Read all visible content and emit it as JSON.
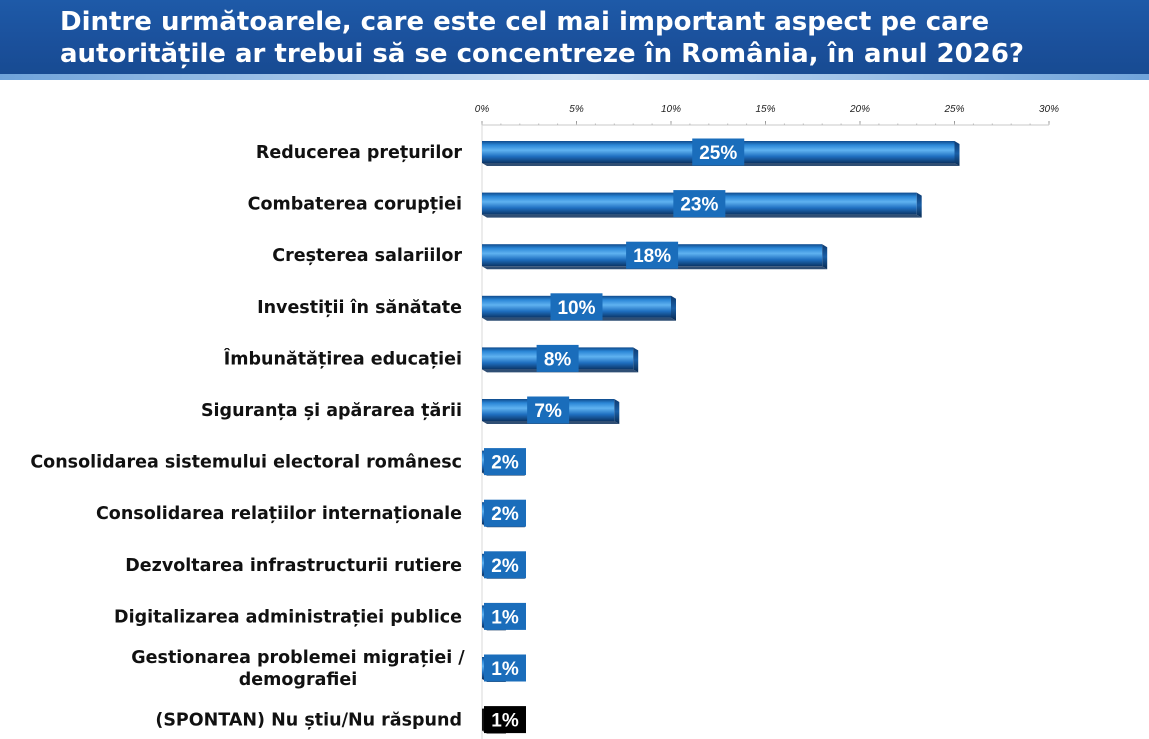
{
  "header": {
    "title": "Dintre următoarele, care este cel mai important aspect pe care autoritățile ar trebui să se concentreze în România, în anul 2026?"
  },
  "chart_data": {
    "type": "bar",
    "orientation": "horizontal",
    "title": "Dintre următoarele, care este cel mai important aspect pe care autoritățile ar trebui să se concentreze în România, în anul 2026?",
    "xlabel": "",
    "ylabel": "",
    "xlim": [
      0,
      30
    ],
    "ticks": [
      "0%",
      "5%",
      "10%",
      "15%",
      "20%",
      "25%",
      "30%"
    ],
    "categories": [
      "Reducerea prețurilor",
      "Combaterea corupției",
      "Creșterea salariilor",
      "Investiții în sănătate",
      "Îmbunătățirea educației",
      "Siguranța și apărarea țării",
      "Consolidarea sistemului electoral românesc",
      "Consolidarea relațiilor internaționale",
      "Dezvoltarea infrastructurii rutiere",
      "Digitalizarea administrației publice",
      "Gestionarea problemei migrației / demografiei",
      "(SPONTAN) Nu știu/Nu răspund"
    ],
    "category_lines": [
      [
        "Reducerea prețurilor"
      ],
      [
        "Combaterea corupției"
      ],
      [
        "Creșterea salariilor"
      ],
      [
        "Investiții în sănătate"
      ],
      [
        "Îmbunătățirea educației"
      ],
      [
        "Siguranța și apărarea țării"
      ],
      [
        "Consolidarea sistemului electoral românesc"
      ],
      [
        "Consolidarea relațiilor internaționale"
      ],
      [
        "Dezvoltarea infrastructurii rutiere"
      ],
      [
        "Digitalizarea administrației publice"
      ],
      [
        "Gestionarea problemei migrației /",
        "demografiei"
      ],
      [
        "(SPONTAN) Nu știu/Nu răspund"
      ]
    ],
    "values": [
      25,
      23,
      18,
      10,
      8,
      7,
      2,
      2,
      2,
      1,
      1,
      1
    ],
    "labels": [
      "25%",
      "23%",
      "18%",
      "10%",
      "8%",
      "7%",
      "2%",
      "2%",
      "2%",
      "1%",
      "1%",
      "1%"
    ],
    "highlight_last": true
  },
  "colors": {
    "header_bg": "#1a4f9a",
    "bar_light": "#4aa0e6",
    "bar_mid": "#1f6fc0",
    "bar_dark": "#0e3f7a",
    "label_bg": "#1a6dbb",
    "label_bg_last": "#000000",
    "text": "#111111"
  }
}
